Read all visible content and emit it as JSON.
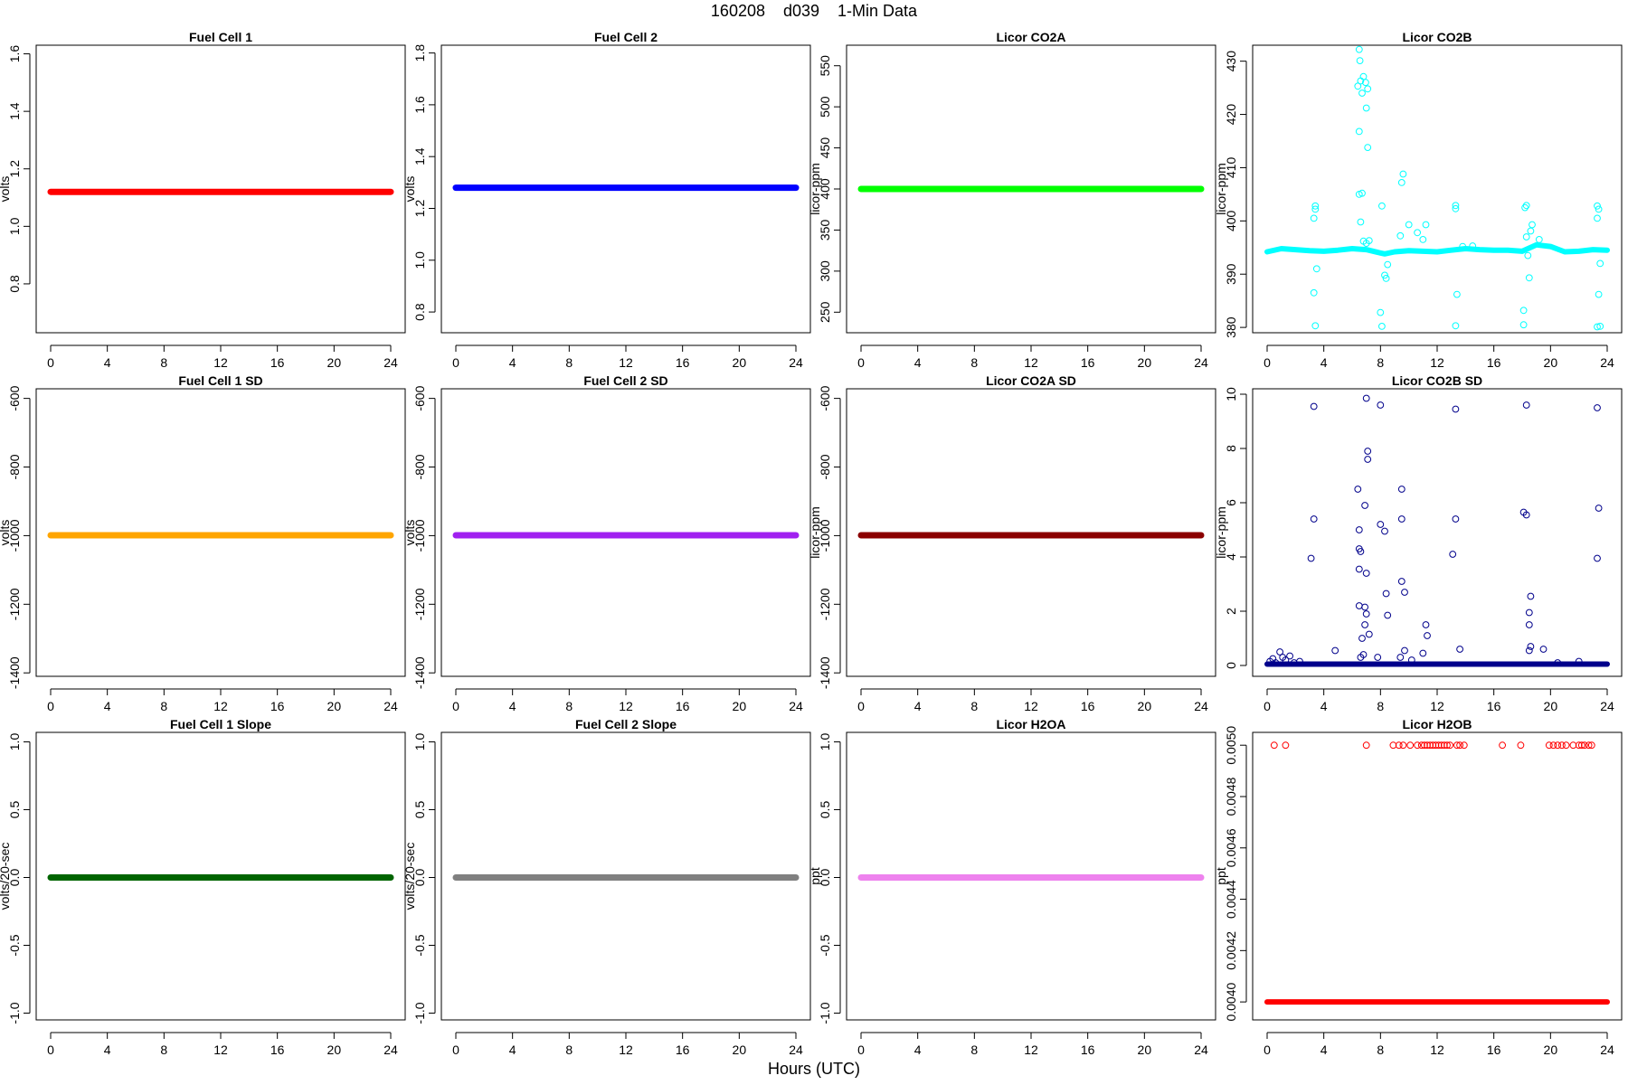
{
  "page": {
    "title": "160208    d039    1-Min Data",
    "x_caption": "Hours (UTC)"
  },
  "chart_data": [
    {
      "id": "fc1",
      "type": "line",
      "title": "Fuel Cell 1",
      "ylabel": "volts",
      "xlim": [
        0,
        24
      ],
      "xticks": [
        0,
        4,
        8,
        12,
        16,
        20,
        24
      ],
      "ylim": [
        0.63,
        1.63
      ],
      "yticks": [
        0.8,
        1.0,
        1.2,
        1.4,
        1.6
      ],
      "ytick_labels": [
        "0.8",
        "1.0",
        "1.2",
        "1.4",
        "1.6"
      ],
      "color": "#ff0000",
      "series": [
        {
          "x": [
            0,
            24
          ],
          "y": [
            1.12,
            1.12
          ]
        }
      ]
    },
    {
      "id": "fc2",
      "type": "line",
      "title": "Fuel Cell 2",
      "ylabel": "volts",
      "xlim": [
        0,
        24
      ],
      "xticks": [
        0,
        4,
        8,
        12,
        16,
        20,
        24
      ],
      "ylim": [
        0.72,
        1.83
      ],
      "yticks": [
        0.8,
        1.0,
        1.2,
        1.4,
        1.6,
        1.8
      ],
      "ytick_labels": [
        "0.8",
        "1.0",
        "1.2",
        "1.4",
        "1.6",
        "1.8"
      ],
      "color": "#0000ff",
      "series": [
        {
          "x": [
            0,
            24
          ],
          "y": [
            1.28,
            1.28
          ]
        }
      ]
    },
    {
      "id": "co2a",
      "type": "line",
      "title": "Licor CO2A",
      "ylabel": "licor-ppm",
      "xlim": [
        0,
        24
      ],
      "xticks": [
        0,
        4,
        8,
        12,
        16,
        20,
        24
      ],
      "ylim": [
        225,
        575
      ],
      "yticks": [
        250,
        300,
        350,
        400,
        450,
        500,
        550
      ],
      "ytick_labels": [
        "250",
        "300",
        "350",
        "400",
        "450",
        "500",
        "550"
      ],
      "color": "#00ff00",
      "series": [
        {
          "x": [
            0,
            24
          ],
          "y": [
            400,
            400
          ]
        }
      ]
    },
    {
      "id": "co2b",
      "type": "scatter",
      "title": "Licor CO2B",
      "ylabel": "licor-ppm",
      "xlim": [
        0,
        24
      ],
      "xticks": [
        0,
        4,
        8,
        12,
        16,
        20,
        24
      ],
      "ylim": [
        379,
        433
      ],
      "yticks": [
        380,
        390,
        400,
        410,
        420,
        430
      ],
      "ytick_labels": [
        "380",
        "390",
        "400",
        "410",
        "420",
        "430"
      ],
      "color": "#00ffff",
      "baseline": [
        [
          0,
          394.2
        ],
        [
          1,
          394.8
        ],
        [
          2,
          394.6
        ],
        [
          3,
          394.4
        ],
        [
          4,
          394.3
        ],
        [
          5,
          394.5
        ],
        [
          6,
          394.8
        ],
        [
          7,
          394.6
        ],
        [
          7.8,
          394.1
        ],
        [
          8.3,
          393.8
        ],
        [
          9,
          394.2
        ],
        [
          10,
          394.4
        ],
        [
          11,
          394.3
        ],
        [
          12,
          394.2
        ],
        [
          13,
          394.5
        ],
        [
          14,
          394.8
        ],
        [
          15,
          394.6
        ],
        [
          16,
          394.5
        ],
        [
          17,
          394.5
        ],
        [
          18,
          394.3
        ],
        [
          19,
          395.5
        ],
        [
          20,
          395.2
        ],
        [
          21,
          394.2
        ],
        [
          22,
          394.3
        ],
        [
          23,
          394.6
        ],
        [
          24,
          394.5
        ]
      ],
      "outliers": [
        [
          3.4,
          402.8
        ],
        [
          3.4,
          402.2
        ],
        [
          3.3,
          400.5
        ],
        [
          3.5,
          391
        ],
        [
          3.3,
          386.5
        ],
        [
          3.4,
          380.3
        ],
        [
          6.5,
          432.2
        ],
        [
          6.4,
          425.3
        ],
        [
          6.55,
          430.1
        ],
        [
          6.6,
          426.3
        ],
        [
          6.7,
          424
        ],
        [
          6.5,
          416.8
        ],
        [
          6.8,
          427.1
        ],
        [
          6.95,
          426
        ],
        [
          7.1,
          424.8
        ],
        [
          7,
          421.2
        ],
        [
          7.1,
          413.8
        ],
        [
          6.5,
          405
        ],
        [
          6.7,
          405.2
        ],
        [
          6.6,
          399.8
        ],
        [
          6.8,
          396.2
        ],
        [
          7,
          395.8
        ],
        [
          7.2,
          396.3
        ],
        [
          8.1,
          402.8
        ],
        [
          8,
          382.8
        ],
        [
          8.1,
          380.2
        ],
        [
          8.3,
          389.8
        ],
        [
          8.4,
          389.2
        ],
        [
          8.5,
          391.8
        ],
        [
          9.5,
          407.2
        ],
        [
          9.6,
          408.8
        ],
        [
          9.4,
          397.2
        ],
        [
          10,
          399.3
        ],
        [
          10.6,
          397.8
        ],
        [
          11,
          396.5
        ],
        [
          11.2,
          399.3
        ],
        [
          13.3,
          402.9
        ],
        [
          13.3,
          402.3
        ],
        [
          13.4,
          386.2
        ],
        [
          13.3,
          380.3
        ],
        [
          13.8,
          395.2
        ],
        [
          14.5,
          395.3
        ],
        [
          18.1,
          383.2
        ],
        [
          18.1,
          380.5
        ],
        [
          18.3,
          402.9
        ],
        [
          18.2,
          402.5
        ],
        [
          18.3,
          397
        ],
        [
          18.4,
          393.5
        ],
        [
          18.5,
          389.3
        ],
        [
          18.6,
          398.1
        ],
        [
          18.7,
          399.3
        ],
        [
          19.2,
          396.5
        ],
        [
          23.3,
          402.8
        ],
        [
          23.4,
          402.2
        ],
        [
          23.3,
          400.5
        ],
        [
          23.5,
          392
        ],
        [
          23.4,
          386.2
        ],
        [
          23.5,
          380.2
        ],
        [
          23.3,
          380.1
        ]
      ]
    },
    {
      "id": "fc1sd",
      "type": "line",
      "title": "Fuel Cell 1 SD",
      "ylabel": "volts",
      "xlim": [
        0,
        24
      ],
      "xticks": [
        0,
        4,
        8,
        12,
        16,
        20,
        24
      ],
      "ylim": [
        -1410,
        -572
      ],
      "yticks": [
        -1400,
        -1200,
        -1000,
        -800,
        -600
      ],
      "ytick_labels": [
        "-1400",
        "-1200",
        "-1000",
        "-800",
        "-600"
      ],
      "color": "#ffa500",
      "series": [
        {
          "x": [
            0,
            24
          ],
          "y": [
            -999,
            -999
          ]
        }
      ]
    },
    {
      "id": "fc2sd",
      "type": "line",
      "title": "Fuel Cell 2 SD",
      "ylabel": "volts",
      "xlim": [
        0,
        24
      ],
      "xticks": [
        0,
        4,
        8,
        12,
        16,
        20,
        24
      ],
      "ylim": [
        -1410,
        -572
      ],
      "yticks": [
        -1400,
        -1200,
        -1000,
        -800,
        -600
      ],
      "ytick_labels": [
        "-1400",
        "-1200",
        "-1000",
        "-800",
        "-600"
      ],
      "color": "#a020f0",
      "series": [
        {
          "x": [
            0,
            24
          ],
          "y": [
            -999,
            -999
          ]
        }
      ]
    },
    {
      "id": "co2asd",
      "type": "line",
      "title": "Licor CO2A SD",
      "ylabel": "licor-ppm",
      "xlim": [
        0,
        24
      ],
      "xticks": [
        0,
        4,
        8,
        12,
        16,
        20,
        24
      ],
      "ylim": [
        -1410,
        -572
      ],
      "yticks": [
        -1400,
        -1200,
        -1000,
        -800,
        -600
      ],
      "ytick_labels": [
        "-1400",
        "-1200",
        "-1000",
        "-800",
        "-600"
      ],
      "color": "#8b0000",
      "series": [
        {
          "x": [
            0,
            24
          ],
          "y": [
            -999,
            -999
          ]
        }
      ]
    },
    {
      "id": "co2bsd",
      "type": "scatter",
      "title": "Licor CO2B SD",
      "ylabel": "licor-ppm",
      "xlim": [
        0,
        24
      ],
      "xticks": [
        0,
        4,
        8,
        12,
        16,
        20,
        24
      ],
      "ylim": [
        -0.4,
        10.2
      ],
      "yticks": [
        0,
        2,
        4,
        6,
        8,
        10
      ],
      "ytick_labels": [
        "0",
        "2",
        "4",
        "6",
        "8",
        "10"
      ],
      "color": "#00008b",
      "baseline": [
        [
          0,
          0.05
        ],
        [
          24,
          0.05
        ]
      ],
      "outliers": [
        [
          0.2,
          0.15
        ],
        [
          0.4,
          0.25
        ],
        [
          0.6,
          0.1
        ],
        [
          0.9,
          0.5
        ],
        [
          1.1,
          0.3
        ],
        [
          1.3,
          0.2
        ],
        [
          1.6,
          0.35
        ],
        [
          1.9,
          0.1
        ],
        [
          2.3,
          0.15
        ],
        [
          3.1,
          3.95
        ],
        [
          3.3,
          5.4
        ],
        [
          3.3,
          9.55
        ],
        [
          4.8,
          0.55
        ],
        [
          6.4,
          6.5
        ],
        [
          6.5,
          5.0
        ],
        [
          6.5,
          4.3
        ],
        [
          6.6,
          4.2
        ],
        [
          6.5,
          3.55
        ],
        [
          6.5,
          2.2
        ],
        [
          6.7,
          1.0
        ],
        [
          6.6,
          0.3
        ],
        [
          6.8,
          0.4
        ],
        [
          6.9,
          2.15
        ],
        [
          6.9,
          1.5
        ],
        [
          7.0,
          1.9
        ],
        [
          7.0,
          3.4
        ],
        [
          6.9,
          5.9
        ],
        [
          7.1,
          7.9
        ],
        [
          7.1,
          7.6
        ],
        [
          7.0,
          9.85
        ],
        [
          7.2,
          1.15
        ],
        [
          7.8,
          0.3
        ],
        [
          8.0,
          5.2
        ],
        [
          8.0,
          9.6
        ],
        [
          8.3,
          4.95
        ],
        [
          8.4,
          2.65
        ],
        [
          8.5,
          1.85
        ],
        [
          9.4,
          0.3
        ],
        [
          9.5,
          6.5
        ],
        [
          9.5,
          5.4
        ],
        [
          9.5,
          3.1
        ],
        [
          9.7,
          2.7
        ],
        [
          9.7,
          0.55
        ],
        [
          10.2,
          0.2
        ],
        [
          11.0,
          0.45
        ],
        [
          11.2,
          1.5
        ],
        [
          11.3,
          1.1
        ],
        [
          13.1,
          4.1
        ],
        [
          13.3,
          5.4
        ],
        [
          13.3,
          9.45
        ],
        [
          13.6,
          0.6
        ],
        [
          18.1,
          5.65
        ],
        [
          18.3,
          5.55
        ],
        [
          18.3,
          9.6
        ],
        [
          18.5,
          1.95
        ],
        [
          18.5,
          1.5
        ],
        [
          18.6,
          2.55
        ],
        [
          18.6,
          0.7
        ],
        [
          18.5,
          0.55
        ],
        [
          19.5,
          0.6
        ],
        [
          23.3,
          3.95
        ],
        [
          23.4,
          5.8
        ],
        [
          23.3,
          9.5
        ],
        [
          22.0,
          0.15
        ],
        [
          20.5,
          0.1
        ]
      ]
    },
    {
      "id": "fc1slope",
      "type": "line",
      "title": "Fuel Cell 1 Slope",
      "ylabel": "volts/20-sec",
      "xlim": [
        0,
        24
      ],
      "xticks": [
        0,
        4,
        8,
        12,
        16,
        20,
        24
      ],
      "ylim": [
        -1.05,
        1.07
      ],
      "yticks": [
        -1.0,
        -0.5,
        0.0,
        0.5,
        1.0
      ],
      "ytick_labels": [
        "-1.0",
        "-0.5",
        "0.0",
        "0.5",
        "1.0"
      ],
      "color": "#006400",
      "series": [
        {
          "x": [
            0,
            24
          ],
          "y": [
            0,
            0
          ]
        }
      ]
    },
    {
      "id": "fc2slope",
      "type": "line",
      "title": "Fuel Cell 2 Slope",
      "ylabel": "volts/20-sec",
      "xlim": [
        0,
        24
      ],
      "xticks": [
        0,
        4,
        8,
        12,
        16,
        20,
        24
      ],
      "ylim": [
        -1.05,
        1.07
      ],
      "yticks": [
        -1.0,
        -0.5,
        0.0,
        0.5,
        1.0
      ],
      "ytick_labels": [
        "-1.0",
        "-0.5",
        "0.0",
        "0.5",
        "1.0"
      ],
      "color": "#808080",
      "series": [
        {
          "x": [
            0,
            24
          ],
          "y": [
            0,
            0
          ]
        }
      ]
    },
    {
      "id": "h2oa",
      "type": "line",
      "title": "Licor H2OA",
      "ylabel": "ppt",
      "xlim": [
        0,
        24
      ],
      "xticks": [
        0,
        4,
        8,
        12,
        16,
        20,
        24
      ],
      "ylim": [
        -1.05,
        1.07
      ],
      "yticks": [
        -1.0,
        -0.5,
        0.0,
        0.5,
        1.0
      ],
      "ytick_labels": [
        "-1.0",
        "-0.5",
        "0.0",
        "0.5",
        "1.0"
      ],
      "color": "#ee82ee",
      "series": [
        {
          "x": [
            0,
            24
          ],
          "y": [
            0,
            0
          ]
        }
      ]
    },
    {
      "id": "h2ob",
      "type": "scatter",
      "title": "Licor H2OB",
      "ylabel": "ppt",
      "xlim": [
        0,
        24
      ],
      "xticks": [
        0,
        4,
        8,
        12,
        16,
        20,
        24
      ],
      "ylim": [
        0.00393,
        0.00505
      ],
      "yticks": [
        0.004,
        0.0042,
        0.0044,
        0.0046,
        0.0048,
        0.005
      ],
      "ytick_labels": [
        "0.0040",
        "0.0042",
        "0.0044",
        "0.0046",
        "0.0048",
        "0.0050"
      ],
      "color": "#ff0000",
      "baseline": [
        [
          0,
          0.004
        ],
        [
          24,
          0.004
        ]
      ],
      "outliers": [
        [
          0.5,
          0.005
        ],
        [
          1.3,
          0.005
        ],
        [
          7.0,
          0.005
        ],
        [
          8.9,
          0.005
        ],
        [
          9.3,
          0.005
        ],
        [
          9.6,
          0.005
        ],
        [
          10.1,
          0.005
        ],
        [
          10.6,
          0.005
        ],
        [
          10.9,
          0.005
        ],
        [
          11.1,
          0.005
        ],
        [
          11.3,
          0.005
        ],
        [
          11.5,
          0.005
        ],
        [
          11.7,
          0.005
        ],
        [
          11.9,
          0.005
        ],
        [
          12.1,
          0.005
        ],
        [
          12.3,
          0.005
        ],
        [
          12.5,
          0.005
        ],
        [
          12.7,
          0.005
        ],
        [
          12.9,
          0.005
        ],
        [
          13.4,
          0.005
        ],
        [
          13.6,
          0.005
        ],
        [
          13.9,
          0.005
        ],
        [
          16.6,
          0.005
        ],
        [
          17.9,
          0.005
        ],
        [
          19.9,
          0.005
        ],
        [
          20.2,
          0.005
        ],
        [
          20.5,
          0.005
        ],
        [
          20.8,
          0.005
        ],
        [
          21.1,
          0.005
        ],
        [
          21.6,
          0.005
        ],
        [
          22.0,
          0.005
        ],
        [
          22.2,
          0.005
        ],
        [
          22.4,
          0.005
        ],
        [
          22.7,
          0.005
        ],
        [
          22.9,
          0.005
        ]
      ]
    }
  ]
}
